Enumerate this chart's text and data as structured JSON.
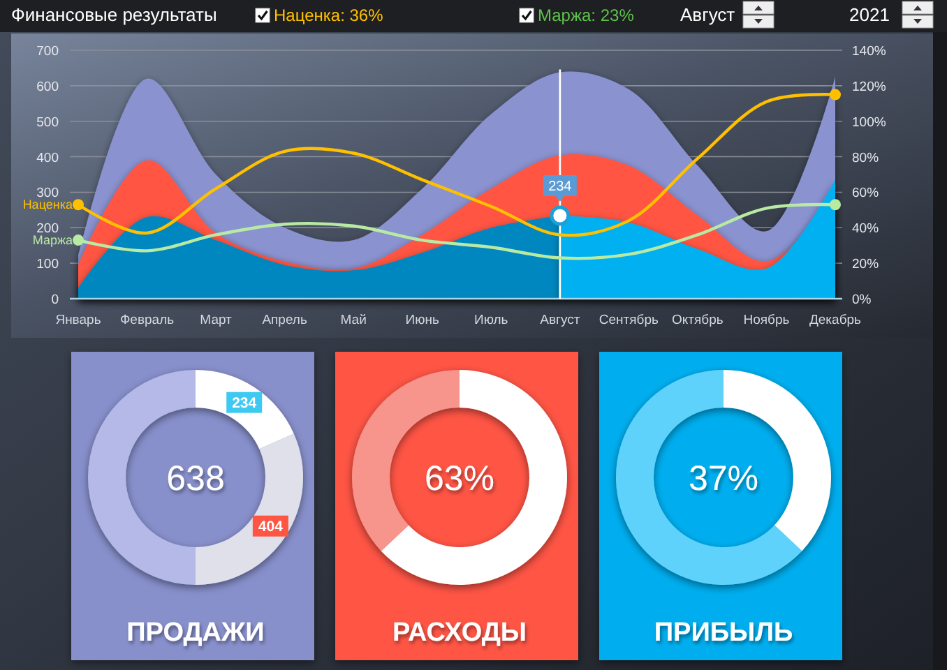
{
  "chart_data": [
    {
      "type": "area",
      "title": "Финансовые результаты",
      "annotations": [
        "Наценка: 36%",
        "Маржа: 23%",
        "Август",
        "2021",
        {
          "text": "234",
          "x": "Август",
          "y": 234
        }
      ],
      "categories": [
        "Январь",
        "Февраль",
        "Март",
        "Апрель",
        "Май",
        "Июнь",
        "Июль",
        "Август",
        "Сентябрь",
        "Октябрь",
        "Ноябрь",
        "Декабрь"
      ],
      "series": [
        {
          "type": "area",
          "color": "#8a92d0",
          "values": [
            120,
            620,
            350,
            200,
            165,
            310,
            520,
            638,
            590,
            375,
            190,
            625
          ]
        },
        {
          "type": "area",
          "color": "#ff5543",
          "values": [
            95,
            390,
            185,
            105,
            85,
            180,
            310,
            404,
            375,
            235,
            105,
            290
          ]
        },
        {
          "type": "area",
          "color": "#0087bf",
          "values": [
            30,
            230,
            165,
            95,
            80,
            130,
            200,
            234,
            null,
            null,
            null,
            null
          ]
        },
        {
          "type": "area",
          "color": "#00b0f0",
          "values": [
            null,
            null,
            null,
            null,
            null,
            null,
            null,
            234,
            215,
            140,
            85,
            335
          ]
        },
        {
          "type": "line",
          "name": "Наценка",
          "axis": "y2",
          "color": "#ffc000",
          "values": [
            53,
            37,
            62,
            83,
            82,
            67,
            52,
            36,
            44,
            79,
            111,
            115
          ]
        },
        {
          "type": "line",
          "name": "Маржа",
          "axis": "y2",
          "color": "#b8eaa4",
          "values": [
            33,
            27,
            36,
            42,
            41,
            33,
            29,
            23,
            25,
            36,
            51,
            53
          ]
        },
        {
          "type": "scatter",
          "axis": "y2",
          "color": "#ffc000",
          "marker": "circle",
          "x": [
            "Январь",
            "Декабрь"
          ],
          "values": [
            53,
            115
          ]
        },
        {
          "type": "scatter",
          "axis": "y2",
          "color": "#b8eaa4",
          "marker": "circle",
          "x": [
            "Январь",
            "Декабрь"
          ],
          "values": [
            33,
            53
          ]
        }
      ],
      "ylim": [
        0,
        700
      ],
      "yticks": [
        0,
        100,
        200,
        300,
        400,
        500,
        600,
        700
      ],
      "y2lim": [
        0,
        140
      ],
      "y2ticks": [
        {
          "value": 0,
          "label": "0%"
        },
        {
          "value": 20,
          "label": "20%"
        },
        {
          "value": 40,
          "label": "40%"
        },
        {
          "value": 60,
          "label": "60%"
        },
        {
          "value": 80,
          "label": "80%"
        },
        {
          "value": 100,
          "label": "100%"
        },
        {
          "value": 120,
          "label": "120%"
        },
        {
          "value": 140,
          "label": "140%"
        }
      ],
      "grid": "y",
      "ref_lines": [
        {
          "axis": "x",
          "value": "Август",
          "color": "#ffffff"
        }
      ]
    },
    {
      "type": "donut",
      "title": "ПРОДАЖИ",
      "categories": [
        null,
        null,
        null
      ],
      "values": [
        234,
        404,
        638
      ],
      "colors": [
        "#ffffff",
        "#dfe0ea",
        "#b4b9e8"
      ],
      "value_labels": [
        "234",
        "404",
        null
      ],
      "annotations": [
        "638"
      ]
    },
    {
      "type": "donut",
      "title": "РАСХОДЫ",
      "categories": [
        null,
        null
      ],
      "values": [
        63,
        37
      ],
      "colors": [
        "#ffffff",
        "#f7948b"
      ],
      "annotations": [
        "63%"
      ]
    },
    {
      "type": "donut",
      "title": "ПРИБЫЛЬ",
      "categories": [
        null,
        null
      ],
      "values": [
        37,
        63
      ],
      "colors": [
        "#ffffff",
        "#5fd2fb"
      ],
      "annotations": [
        "37%"
      ]
    }
  ]
}
